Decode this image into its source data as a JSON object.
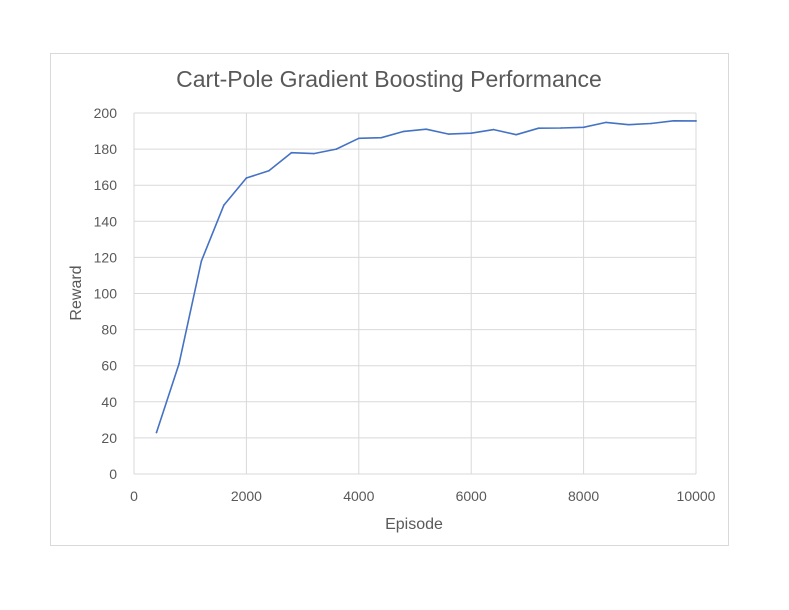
{
  "chart_data": {
    "type": "line",
    "title": "Cart-Pole Gradient Boosting Performance",
    "xlabel": "Episode",
    "ylabel": "Reward",
    "xlim": [
      0,
      10000
    ],
    "ylim": [
      0,
      200
    ],
    "xticks": [
      0,
      2000,
      4000,
      6000,
      8000,
      10000
    ],
    "yticks": [
      0,
      20,
      40,
      60,
      80,
      100,
      120,
      140,
      160,
      180,
      200
    ],
    "grid": "vertical and horizontal major gridlines",
    "legend": "none",
    "series": [
      {
        "color": "#4472c4",
        "x": [
          400,
          800,
          1200,
          1600,
          2000,
          2400,
          2800,
          3200,
          3600,
          4000,
          4400,
          4800,
          5200,
          5600,
          6000,
          6400,
          6800,
          7200,
          7600,
          8000,
          8400,
          8800,
          9200,
          9600,
          10000
        ],
        "y": [
          23,
          61,
          118,
          149,
          164,
          168,
          178,
          177.5,
          180,
          186,
          186.3,
          189.8,
          191,
          188.3,
          188.8,
          190.8,
          188,
          191.6,
          191.7,
          192.1,
          194.8,
          193.5,
          194.2,
          195.7,
          195.6
        ]
      }
    ]
  }
}
